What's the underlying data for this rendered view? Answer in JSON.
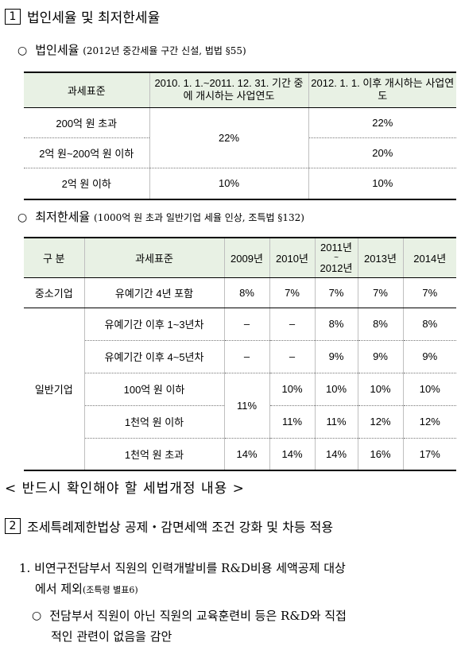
{
  "section1": {
    "num": "1",
    "title": "법인세율 및 최저한세율"
  },
  "corporate": {
    "bullet": "○",
    "title": "법인세율",
    "note": "(2012년 중간세율 구간 신설, 법법 §55)",
    "headers": [
      "과세표준",
      "2010. 1. 1.~2011. 12. 31. 기간 중에 개시하는 사업연도",
      "2012. 1. 1. 이후 개시하는 사업연도"
    ],
    "rows": [
      {
        "base": "200억 원 초과",
        "old": "22%",
        "new": "22%"
      },
      {
        "base": "2억 원~200억 원 이하",
        "new": "20%"
      },
      {
        "base": "2억 원 이하",
        "old": "10%",
        "new": "10%"
      }
    ]
  },
  "minimum": {
    "bullet": "○",
    "title": "최저한세율",
    "note": "(1000억 원 초과 일반기업 세율 인상, 조특법 §132)",
    "headers": {
      "div": "구 분",
      "base": "과세표준",
      "y2009": "2009년",
      "y2010": "2010년",
      "y2011a": "2011년",
      "y2011b": "~",
      "y2011c": "2012년",
      "y2013": "2013년",
      "y2014": "2014년"
    },
    "sme": {
      "label": "중소기업",
      "base": "유예기간 4년 포함",
      "v": [
        "8%",
        "7%",
        "7%",
        "7%",
        "7%"
      ]
    },
    "general": {
      "label": "일반기업",
      "rows": [
        {
          "base": "유예기간 이후 1~3년차",
          "v": [
            "–",
            "–",
            "8%",
            "8%",
            "8%"
          ]
        },
        {
          "base": "유예기간 이후 4~5년차",
          "v": [
            "–",
            "–",
            "9%",
            "9%",
            "9%"
          ]
        },
        {
          "base": "100억 원 이하",
          "v": [
            "11%",
            "10%",
            "10%",
            "10%",
            "10%"
          ]
        },
        {
          "base": "1천억 원 이하",
          "v": [
            "",
            "11%",
            "11%",
            "12%",
            "12%"
          ]
        },
        {
          "base": "1천억 원 초과",
          "v": [
            "14%",
            "14%",
            "14%",
            "16%",
            "17%"
          ]
        }
      ]
    }
  },
  "reminder": "< 반드시 확인해야 할 세법개정 내용 >",
  "section2": {
    "num": "2",
    "title": "조세특례제한법상 공제・감면세액 조건 강화 및 차등 적용"
  },
  "item1": {
    "line1": "1. 비연구전담부서 직원의 인력개발비를 R&D비용 세액공제 대상",
    "line2": "에서 제외",
    "line2_note": "(조특령 별표6)",
    "bullet": "○",
    "line3": "전담부서 직원이 아닌 직원의 교육훈련비 등은 R&D와 직접",
    "line4": "적인 관련이 없음을 감안"
  }
}
